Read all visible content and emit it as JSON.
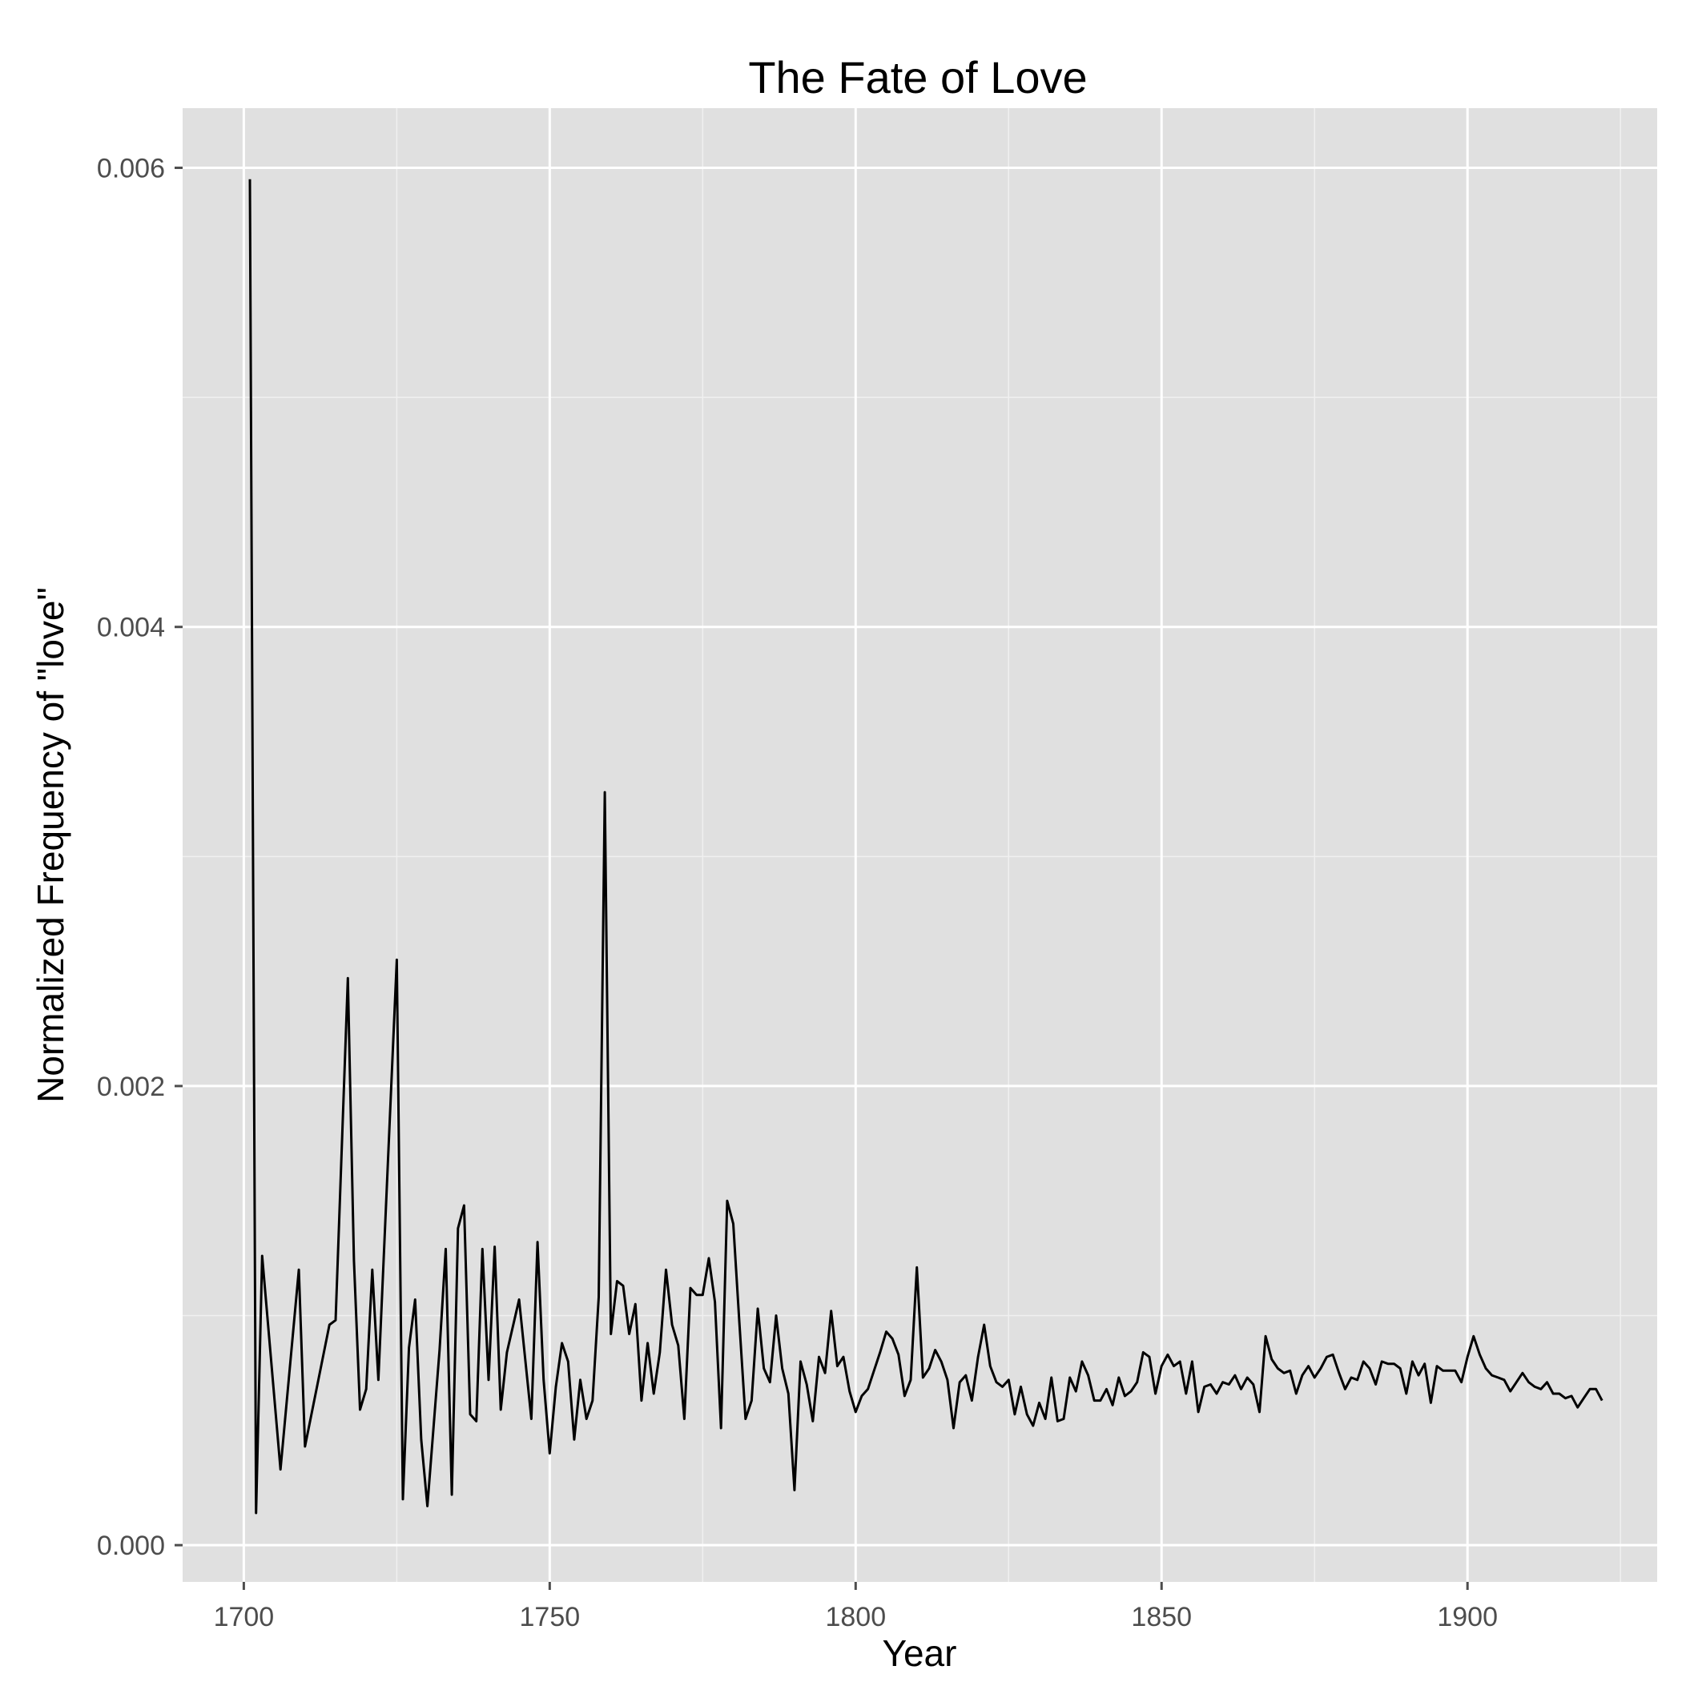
{
  "chart_data": {
    "type": "line",
    "title": "The Fate of Love",
    "xlabel": "Year",
    "ylabel": "Normalized Frequency of \"love\"",
    "xlim": [
      1690,
      1931
    ],
    "ylim": [
      -0.00016,
      0.00626
    ],
    "xticks": [
      1700,
      1750,
      1800,
      1850,
      1900
    ],
    "xtick_labels": [
      "1700",
      "1750",
      "1800",
      "1850",
      "1900"
    ],
    "yticks": [
      0.0,
      0.002,
      0.004,
      0.006
    ],
    "ytick_labels": [
      "0.000",
      "0.002",
      "0.004",
      "0.006"
    ],
    "grid": true,
    "background": "#e0e0e0",
    "line_color": "#000000",
    "series": [
      {
        "x": [
          1701,
          1702,
          1703,
          1706,
          1709,
          1710,
          1714,
          1715,
          1717,
          1718,
          1719,
          1720,
          1721,
          1722,
          1725,
          1726,
          1727,
          1728,
          1729,
          1730,
          1732,
          1733,
          1734,
          1735,
          1736,
          1737,
          1738,
          1739,
          1740,
          1741,
          1742,
          1743,
          1745,
          1747,
          1748,
          1749,
          1750,
          1751,
          1752,
          1753,
          1754,
          1755,
          1756,
          1757,
          1758,
          1759,
          1760,
          1761,
          1762,
          1763,
          1764,
          1765,
          1766,
          1767,
          1768,
          1769,
          1770,
          1771,
          1772,
          1773,
          1774,
          1775,
          1776,
          1777,
          1778,
          1779,
          1780,
          1781,
          1782,
          1783,
          1784,
          1785,
          1786,
          1787,
          1788,
          1789,
          1790,
          1791,
          1792,
          1793,
          1794,
          1795,
          1796,
          1797,
          1798,
          1799,
          1800,
          1801,
          1802,
          1803,
          1804,
          1805,
          1806,
          1807,
          1808,
          1809,
          1810,
          1811,
          1812,
          1813,
          1814,
          1815,
          1816,
          1817,
          1818,
          1819,
          1820,
          1821,
          1822,
          1823,
          1824,
          1825,
          1826,
          1827,
          1828,
          1829,
          1830,
          1831,
          1832,
          1833,
          1834,
          1835,
          1836,
          1837,
          1838,
          1839,
          1840,
          1841,
          1842,
          1843,
          1844,
          1845,
          1846,
          1847,
          1848,
          1849,
          1850,
          1851,
          1852,
          1853,
          1854,
          1855,
          1856,
          1857,
          1858,
          1859,
          1860,
          1861,
          1862,
          1863,
          1864,
          1865,
          1866,
          1867,
          1868,
          1869,
          1870,
          1871,
          1872,
          1873,
          1874,
          1875,
          1876,
          1877,
          1878,
          1879,
          1880,
          1881,
          1882,
          1883,
          1884,
          1885,
          1886,
          1887,
          1888,
          1889,
          1890,
          1891,
          1892,
          1893,
          1894,
          1895,
          1896,
          1897,
          1898,
          1899,
          1900,
          1901,
          1902,
          1903,
          1904,
          1905,
          1906,
          1907,
          1908,
          1909,
          1910,
          1911,
          1912,
          1913,
          1914,
          1915,
          1916,
          1917,
          1918,
          1919,
          1920,
          1921,
          1922
        ],
        "y": [
          0.00595,
          0.00014,
          0.00126,
          0.00033,
          0.0012,
          0.00043,
          0.00096,
          0.00098,
          0.00247,
          0.00124,
          0.00059,
          0.00068,
          0.0012,
          0.00072,
          0.00255,
          0.0002,
          0.00086,
          0.00107,
          0.00046,
          0.00017,
          0.00085,
          0.00129,
          0.00022,
          0.00138,
          0.00148,
          0.00057,
          0.00054,
          0.00129,
          0.00072,
          0.0013,
          0.00059,
          0.00084,
          0.00107,
          0.00055,
          0.00132,
          0.00072,
          0.0004,
          0.00069,
          0.00088,
          0.0008,
          0.00046,
          0.00072,
          0.00055,
          0.00063,
          0.00108,
          0.00328,
          0.00092,
          0.00115,
          0.00113,
          0.00092,
          0.00105,
          0.00063,
          0.00088,
          0.00066,
          0.00084,
          0.0012,
          0.00096,
          0.00087,
          0.00055,
          0.00112,
          0.00109,
          0.00109,
          0.00125,
          0.00106,
          0.00051,
          0.0015,
          0.0014,
          0.00097,
          0.00055,
          0.00063,
          0.00103,
          0.00077,
          0.00071,
          0.001,
          0.00077,
          0.00066,
          0.00024,
          0.0008,
          0.0007,
          0.00054,
          0.00082,
          0.00075,
          0.00102,
          0.00078,
          0.00082,
          0.00067,
          0.00058,
          0.00065,
          0.00068,
          0.00076,
          0.00084,
          0.00093,
          0.0009,
          0.00083,
          0.00065,
          0.00072,
          0.00121,
          0.00073,
          0.00077,
          0.00085,
          0.0008,
          0.00072,
          0.00051,
          0.00071,
          0.00074,
          0.00063,
          0.00082,
          0.00096,
          0.00078,
          0.00071,
          0.00069,
          0.00072,
          0.00057,
          0.00069,
          0.00057,
          0.00052,
          0.00062,
          0.00055,
          0.00073,
          0.00054,
          0.00055,
          0.00073,
          0.00067,
          0.0008,
          0.00074,
          0.00063,
          0.00063,
          0.00068,
          0.00061,
          0.00073,
          0.00065,
          0.00067,
          0.00071,
          0.00084,
          0.00082,
          0.00066,
          0.00078,
          0.00083,
          0.00078,
          0.0008,
          0.00066,
          0.0008,
          0.00058,
          0.00069,
          0.0007,
          0.00066,
          0.00071,
          0.0007,
          0.00074,
          0.00068,
          0.00073,
          0.0007,
          0.00058,
          0.00091,
          0.00081,
          0.00077,
          0.00075,
          0.00076,
          0.00066,
          0.00074,
          0.00078,
          0.00073,
          0.00077,
          0.00082,
          0.00083,
          0.00075,
          0.00068,
          0.00073,
          0.00072,
          0.0008,
          0.00077,
          0.0007,
          0.0008,
          0.00079,
          0.00079,
          0.00077,
          0.00066,
          0.0008,
          0.00074,
          0.00079,
          0.00062,
          0.00078,
          0.00076,
          0.00076,
          0.00076,
          0.00071,
          0.00082,
          0.00091,
          0.00083,
          0.00077,
          0.00074,
          0.00073,
          0.00072,
          0.00067,
          0.00071,
          0.00075,
          0.00071,
          0.00069,
          0.00068,
          0.00071,
          0.00066,
          0.00066,
          0.00064,
          0.00065,
          0.0006,
          0.00064,
          0.00068,
          0.00068,
          0.00063
        ]
      }
    ]
  }
}
